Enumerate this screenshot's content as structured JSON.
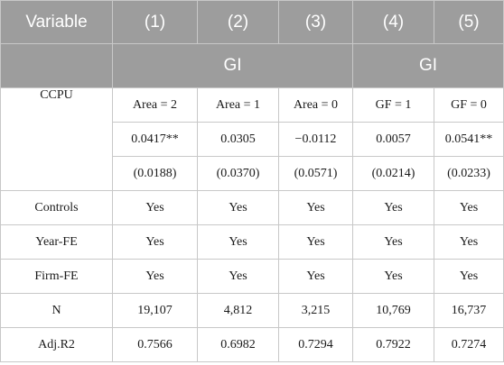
{
  "table": {
    "header": {
      "variable_label": "Variable",
      "columns": [
        "(1)",
        "(2)",
        "(3)",
        "(4)",
        "(5)"
      ],
      "groups": [
        "GI",
        "GI"
      ]
    },
    "ccpu": {
      "label": "CCPU",
      "conditions": [
        "Area = 2",
        "Area = 1",
        "Area = 0",
        "GF = 1",
        "GF = 0"
      ],
      "coefficients": [
        "0.0417**",
        "0.0305",
        "−0.0112",
        "0.0057",
        "0.0541**"
      ],
      "std_errors": [
        "(0.0188)",
        "(0.0370)",
        "(0.0571)",
        "(0.0214)",
        "(0.0233)"
      ]
    },
    "rows": [
      {
        "label": "Controls",
        "values": [
          "Yes",
          "Yes",
          "Yes",
          "Yes",
          "Yes"
        ]
      },
      {
        "label": "Year-FE",
        "values": [
          "Yes",
          "Yes",
          "Yes",
          "Yes",
          "Yes"
        ]
      },
      {
        "label": "Firm-FE",
        "values": [
          "Yes",
          "Yes",
          "Yes",
          "Yes",
          "Yes"
        ]
      },
      {
        "label": "N",
        "values": [
          "19,107",
          "4,812",
          "3,215",
          "10,769",
          "16,737"
        ]
      },
      {
        "label": "Adj.R2",
        "values": [
          "0.7566",
          "0.6982",
          "0.7294",
          "0.7922",
          "0.7274"
        ]
      }
    ]
  }
}
